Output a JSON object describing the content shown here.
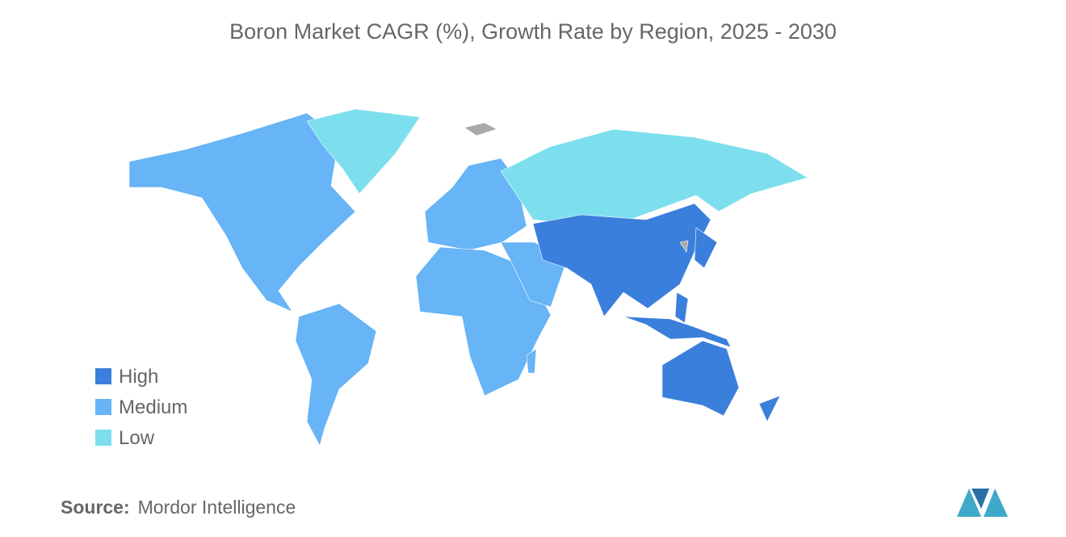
{
  "title": "Boron Market CAGR (%), Growth Rate by Region, 2025 - 2030",
  "legend": [
    {
      "label": "High",
      "color": "#3b7fdc"
    },
    {
      "label": "Medium",
      "color": "#67b4f6"
    },
    {
      "label": "Low",
      "color": "#7ddfee"
    }
  ],
  "source": {
    "label": "Source:",
    "text": "Mordor Intelligence"
  }
}
